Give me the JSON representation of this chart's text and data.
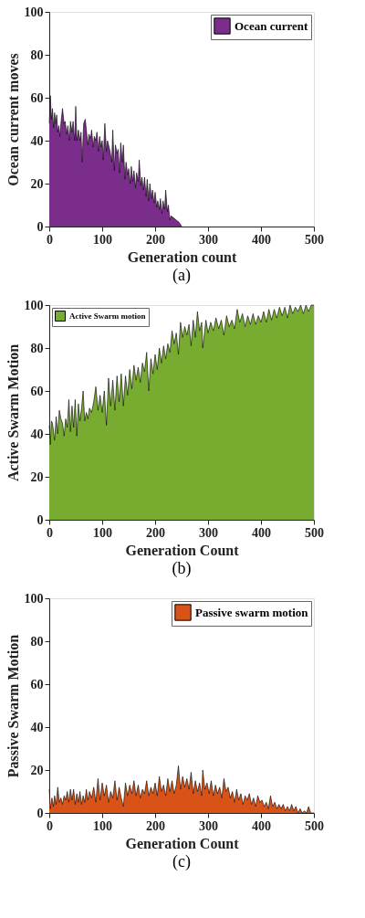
{
  "chart_data": [
    {
      "type": "area",
      "title": "(a)",
      "xlabel": "Generation count",
      "ylabel": "Ocean current moves",
      "legend": "top right",
      "xlim": [
        0,
        500
      ],
      "xticks": [
        0,
        100,
        200,
        300,
        400,
        500
      ],
      "ylim": [
        0,
        100
      ],
      "yticks": [
        0,
        20,
        40,
        60,
        80,
        100
      ],
      "series": [
        {
          "name": "Ocean current",
          "color": "#7b2d8b",
          "x": [
            0,
            2,
            4,
            6,
            8,
            10,
            12,
            14,
            16,
            18,
            20,
            22,
            25,
            28,
            30,
            33,
            35,
            38,
            40,
            43,
            45,
            48,
            50,
            52,
            55,
            58,
            60,
            62,
            65,
            68,
            70,
            73,
            75,
            78,
            80,
            83,
            85,
            88,
            90,
            93,
            95,
            98,
            100,
            102,
            105,
            108,
            110,
            113,
            115,
            118,
            120,
            123,
            125,
            128,
            130,
            133,
            135,
            138,
            140,
            143,
            145,
            148,
            150,
            153,
            155,
            158,
            160,
            163,
            165,
            168,
            170,
            173,
            175,
            178,
            180,
            183,
            185,
            188,
            190,
            193,
            195,
            198,
            200,
            203,
            205,
            208,
            210,
            213,
            215,
            218,
            220,
            223,
            225,
            228,
            230,
            235,
            240,
            245,
            248,
            250
          ],
          "values": [
            48,
            61,
            50,
            55,
            46,
            53,
            48,
            52,
            44,
            47,
            42,
            48,
            55,
            48,
            49,
            43,
            47,
            40,
            49,
            44,
            49,
            40,
            56,
            40,
            45,
            40,
            44,
            30,
            48,
            50,
            45,
            38,
            43,
            41,
            45,
            37,
            42,
            40,
            44,
            35,
            42,
            37,
            40,
            31,
            48,
            35,
            40,
            37,
            35,
            30,
            45,
            26,
            38,
            34,
            36,
            25,
            39,
            30,
            38,
            22,
            30,
            24,
            27,
            20,
            28,
            21,
            26,
            18,
            25,
            21,
            31,
            19,
            23,
            17,
            23,
            14,
            22,
            12,
            20,
            13,
            17,
            11,
            16,
            9,
            12,
            8,
            13,
            6,
            12,
            8,
            17,
            7,
            10,
            3,
            5,
            4,
            3,
            2,
            1,
            0
          ]
        }
      ]
    },
    {
      "type": "area",
      "title": "(b)",
      "xlabel": "Generation Count",
      "ylabel": "Active Swarm Motion",
      "legend": "top left",
      "xlim": [
        0,
        500
      ],
      "xticks": [
        0,
        100,
        200,
        300,
        400,
        500
      ],
      "ylim": [
        0,
        100
      ],
      "yticks": [
        0,
        20,
        40,
        60,
        80,
        100
      ],
      "series": [
        {
          "name": "Active Swarm motion",
          "color": "#77ac30",
          "x": [
            0,
            2,
            4,
            6,
            10,
            13,
            16,
            19,
            22,
            25,
            28,
            31,
            34,
            37,
            40,
            43,
            46,
            49,
            52,
            55,
            58,
            61,
            64,
            67,
            70,
            73,
            76,
            80,
            84,
            88,
            92,
            96,
            100,
            104,
            108,
            112,
            116,
            120,
            124,
            128,
            132,
            136,
            140,
            144,
            148,
            152,
            156,
            160,
            164,
            168,
            172,
            176,
            180,
            184,
            188,
            192,
            196,
            200,
            204,
            208,
            212,
            216,
            220,
            224,
            228,
            232,
            236,
            240,
            244,
            248,
            252,
            256,
            260,
            264,
            268,
            272,
            276,
            280,
            284,
            288,
            290,
            296,
            300,
            305,
            310,
            315,
            320,
            325,
            330,
            335,
            340,
            345,
            350,
            355,
            360,
            365,
            370,
            375,
            380,
            385,
            390,
            395,
            400,
            405,
            410,
            415,
            420,
            425,
            430,
            435,
            440,
            445,
            450,
            455,
            460,
            465,
            470,
            475,
            480,
            485,
            490,
            495,
            500
          ],
          "values": [
            44,
            35,
            46,
            45,
            37,
            48,
            40,
            51,
            47,
            45,
            39,
            47,
            43,
            56,
            41,
            53,
            43,
            56,
            39,
            54,
            46,
            52,
            60,
            46,
            50,
            47,
            52,
            50,
            55,
            62,
            51,
            58,
            50,
            60,
            44,
            66,
            53,
            65,
            51,
            67,
            55,
            68,
            53,
            67,
            58,
            70,
            61,
            72,
            65,
            71,
            64,
            73,
            69,
            78,
            60,
            75,
            68,
            77,
            70,
            80,
            73,
            81,
            75,
            82,
            78,
            88,
            82,
            87,
            77,
            92,
            85,
            90,
            86,
            91,
            81,
            93,
            85,
            97,
            88,
            92,
            80,
            93,
            87,
            92,
            88,
            94,
            89,
            93,
            86,
            95,
            90,
            93,
            89,
            98,
            92,
            96,
            90,
            95,
            91,
            96,
            91,
            95,
            92,
            97,
            92,
            98,
            93,
            98,
            94,
            99,
            95,
            99,
            94,
            100,
            96,
            99,
            97,
            100,
            96,
            100,
            97,
            100,
            100
          ]
        }
      ]
    },
    {
      "type": "area",
      "title": "(c)",
      "xlabel": "Generation Count",
      "ylabel": "Passive Swarm Motion",
      "legend": "top right",
      "xlim": [
        0,
        500
      ],
      "xticks": [
        0,
        100,
        200,
        300,
        400,
        500
      ],
      "ylim": [
        0,
        100
      ],
      "yticks": [
        0,
        20,
        40,
        60,
        80,
        100
      ],
      "series": [
        {
          "name": "Passive swarm motion",
          "color": "#d95319",
          "x": [
            0,
            2,
            5,
            8,
            10,
            13,
            16,
            19,
            22,
            25,
            28,
            31,
            34,
            37,
            40,
            43,
            46,
            49,
            52,
            55,
            58,
            61,
            64,
            67,
            70,
            73,
            76,
            80,
            84,
            88,
            92,
            96,
            100,
            104,
            108,
            112,
            116,
            120,
            124,
            128,
            132,
            136,
            140,
            144,
            148,
            152,
            156,
            160,
            164,
            168,
            172,
            176,
            180,
            184,
            188,
            192,
            196,
            200,
            204,
            208,
            212,
            216,
            220,
            224,
            228,
            232,
            236,
            240,
            244,
            248,
            252,
            256,
            260,
            264,
            268,
            272,
            276,
            280,
            284,
            288,
            290,
            294,
            298,
            302,
            306,
            310,
            314,
            318,
            322,
            326,
            330,
            334,
            338,
            342,
            346,
            350,
            354,
            358,
            362,
            366,
            370,
            374,
            378,
            382,
            386,
            390,
            394,
            398,
            402,
            406,
            410,
            414,
            418,
            422,
            426,
            430,
            434,
            438,
            442,
            446,
            450,
            454,
            458,
            462,
            466,
            470,
            474,
            478,
            482,
            486,
            490,
            494,
            500
          ],
          "values": [
            11,
            2,
            7,
            3,
            8,
            4,
            12,
            5,
            7,
            4,
            8,
            6,
            10,
            5,
            11,
            6,
            11,
            4,
            9,
            5,
            10,
            4,
            8,
            5,
            11,
            6,
            10,
            7,
            12,
            5,
            16,
            6,
            14,
            8,
            13,
            5,
            10,
            7,
            15,
            6,
            12,
            7,
            3,
            14,
            8,
            13,
            9,
            15,
            8,
            13,
            7,
            11,
            9,
            15,
            8,
            12,
            9,
            14,
            8,
            17,
            10,
            13,
            8,
            16,
            10,
            15,
            9,
            13,
            22,
            11,
            17,
            12,
            16,
            11,
            19,
            9,
            15,
            10,
            14,
            8,
            20,
            11,
            14,
            9,
            15,
            8,
            13,
            9,
            12,
            7,
            16,
            10,
            12,
            7,
            10,
            5,
            11,
            6,
            9,
            4,
            8,
            6,
            9,
            4,
            7,
            3,
            8,
            5,
            6,
            3,
            5,
            2,
            8,
            3,
            5,
            2,
            4,
            2,
            4,
            1,
            3,
            1,
            4,
            1,
            3,
            0,
            2,
            0,
            1,
            0,
            3,
            0,
            0
          ]
        }
      ]
    }
  ]
}
